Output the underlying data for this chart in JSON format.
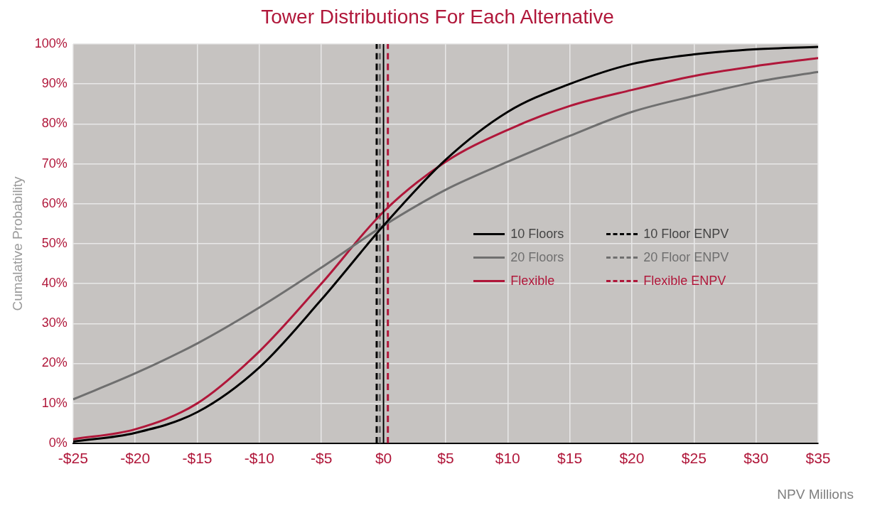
{
  "chart_data": {
    "type": "line",
    "title": "Tower Distributions For Each Alternative",
    "xlabel": "NPV Millions",
    "ylabel": "Cumalative Probability",
    "x": [
      -25,
      -20,
      -15,
      -10,
      -5,
      0,
      5,
      10,
      15,
      20,
      25,
      30,
      35
    ],
    "series": [
      {
        "name": "10 Floors",
        "color": "#000000",
        "values": [
          0.4,
          2.6,
          7.8,
          19,
          36,
          54.5,
          71,
          83,
          90,
          95,
          97.4,
          98.7,
          99.3
        ]
      },
      {
        "name": "20 Floors",
        "color": "#6f6f6f",
        "values": [
          11,
          17.5,
          25,
          34,
          44,
          54.5,
          63.5,
          70.5,
          77,
          83,
          87,
          90.5,
          93
        ]
      },
      {
        "name": "Flexible",
        "color": "#b0173a",
        "values": [
          1,
          3.5,
          10,
          23,
          40,
          58,
          70.5,
          78.5,
          84.5,
          88.5,
          92,
          94.5,
          96.5
        ]
      },
      {
        "name": "10 Floor ENPV",
        "color": "#000000",
        "x": [
          -0.55,
          -0.55
        ],
        "values": [
          0,
          100
        ],
        "line_style": "dashed"
      },
      {
        "name": "20 Floor ENPV",
        "color": "#6f6f6f",
        "x": [
          -0.3,
          -0.3
        ],
        "values": [
          0,
          100
        ],
        "line_style": "dashed"
      },
      {
        "name": "Flexible ENPV",
        "color": "#b0173a",
        "x": [
          0.35,
          0.35
        ],
        "values": [
          0,
          100
        ],
        "line_style": "dashed"
      }
    ],
    "ref_lines": [
      {
        "axis": "x",
        "value": 0,
        "color": "#000000",
        "line_style": "solid"
      }
    ],
    "xlim": [
      -25,
      35
    ],
    "xticks": [
      {
        "value": -25,
        "label": "-$25"
      },
      {
        "value": -20,
        "label": "-$20"
      },
      {
        "value": -15,
        "label": "-$15"
      },
      {
        "value": -10,
        "label": "-$10"
      },
      {
        "value": -5,
        "label": "-$5"
      },
      {
        "value": 0,
        "label": "$0"
      },
      {
        "value": 5,
        "label": "$5"
      },
      {
        "value": 10,
        "label": "$10"
      },
      {
        "value": 15,
        "label": "$15"
      },
      {
        "value": 20,
        "label": "$20"
      },
      {
        "value": 25,
        "label": "$25"
      },
      {
        "value": 30,
        "label": "$30"
      },
      {
        "value": 35,
        "label": "$35"
      }
    ],
    "ylim": [
      0,
      100
    ],
    "yticks": [
      {
        "value": 0,
        "label": "0%"
      },
      {
        "value": 10,
        "label": "10%"
      },
      {
        "value": 20,
        "label": "20%"
      },
      {
        "value": 30,
        "label": "30%"
      },
      {
        "value": 40,
        "label": "40%"
      },
      {
        "value": 50,
        "label": "50%"
      },
      {
        "value": 60,
        "label": "60%"
      },
      {
        "value": 70,
        "label": "70%"
      },
      {
        "value": 80,
        "label": "80%"
      },
      {
        "value": 90,
        "label": "90%"
      },
      {
        "value": 100,
        "label": "100%"
      }
    ],
    "grid": true,
    "legend": "right",
    "marker": "none",
    "line_style": "solid"
  }
}
